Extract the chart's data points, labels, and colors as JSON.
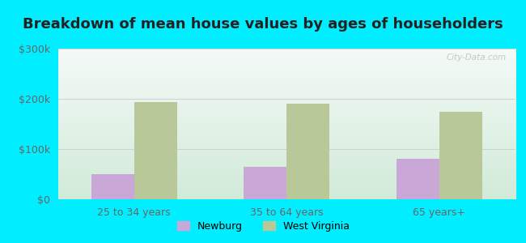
{
  "title": "Breakdown of mean house values by ages of householders",
  "categories": [
    "25 to 34 years",
    "35 to 64 years",
    "65 years+"
  ],
  "newburg_values": [
    50000,
    65000,
    80000
  ],
  "wv_values": [
    193000,
    190000,
    175000
  ],
  "newburg_color": "#c9a8d8",
  "wv_color": "#b8c898",
  "ylim": [
    0,
    300000
  ],
  "yticks": [
    0,
    100000,
    200000,
    300000
  ],
  "ytick_labels": [
    "$0",
    "$100k",
    "$200k",
    "$300k"
  ],
  "legend_labels": [
    "Newburg",
    "West Virginia"
  ],
  "background_outer": "#00eeff",
  "watermark": "City-Data.com",
  "bar_width": 0.28,
  "title_fontsize": 13,
  "tick_fontsize": 9,
  "legend_fontsize": 9,
  "figsize": [
    6.5,
    3.0
  ],
  "dpi": 100
}
